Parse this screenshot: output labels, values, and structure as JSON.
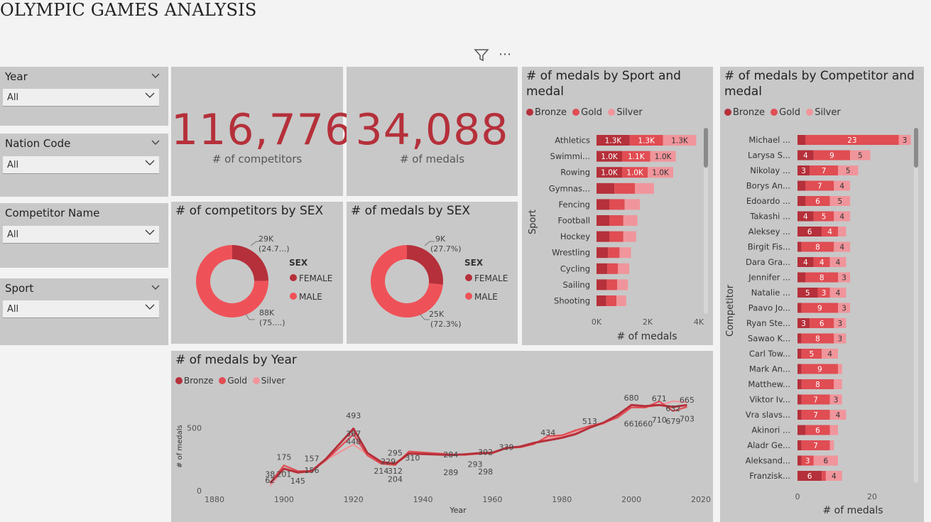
{
  "page_title": "OLYMPIC GAMES ANALYSIS",
  "colors": {
    "bronze": "#b5303a",
    "gold": "#e04d53",
    "silver": "#f0959b",
    "female": "#b5303a",
    "male": "#ee5258",
    "kpi": "#b5303a"
  },
  "toolbar": {
    "filter_icon": "filter-icon",
    "more_icon": "more-options-icon",
    "more_label": "⋯"
  },
  "slicers": [
    {
      "title": "Year",
      "value": "All"
    },
    {
      "title": "Nation Code",
      "value": "All"
    },
    {
      "title": "Competitor Name",
      "value": "All"
    },
    {
      "title": "Sport",
      "value": "All"
    }
  ],
  "kpis": {
    "competitors": {
      "value": "116,776",
      "label": "# of competitors"
    },
    "medals": {
      "value": "34,088",
      "label": "# of medals"
    }
  },
  "legend_medal": [
    "Bronze",
    "Gold",
    "Silver"
  ],
  "donut_competitors": {
    "title": "# of competitors by SEX",
    "legend_title": "SEX",
    "legend": [
      "FEMALE",
      "MALE"
    ],
    "female_label_1": "29K",
    "female_label_2": "(24.7...)",
    "male_label_1": "88K",
    "male_label_2": "(75....)"
  },
  "donut_medals": {
    "title": "# of medals by SEX",
    "legend_title": "SEX",
    "legend": [
      "FEMALE",
      "MALE"
    ],
    "female_label_1": "9K",
    "female_label_2": "(27.7%)",
    "male_label_1": "25K",
    "male_label_2": "(72.3%)"
  },
  "sport_chart": {
    "title": "# of medals by Sport and medal",
    "ylabel": "Sport",
    "xlabel": "# of medals",
    "ticks": [
      "0K",
      "2K",
      "4K"
    ]
  },
  "competitor_chart": {
    "title": "# of medals by Competitor and medal",
    "ylabel": "Competitor",
    "xlabel": "# of medals",
    "ticks": [
      "0",
      "20"
    ]
  },
  "year_chart": {
    "title": "# of medals by Year",
    "ylabel": "# of medals",
    "xlabel": "Year",
    "yticks": [
      "0",
      "500"
    ],
    "xticks": [
      "1880",
      "1900",
      "1920",
      "1940",
      "1960",
      "1980",
      "2000",
      "2020"
    ]
  },
  "chart_data": [
    {
      "type": "pie",
      "title": "# of competitors by SEX",
      "categories": [
        "FEMALE",
        "MALE"
      ],
      "values": [
        29000,
        88000
      ],
      "percent": [
        24.7,
        75.3
      ]
    },
    {
      "type": "pie",
      "title": "# of medals by SEX",
      "categories": [
        "FEMALE",
        "MALE"
      ],
      "values": [
        9000,
        25000
      ],
      "percent": [
        27.7,
        72.3
      ]
    },
    {
      "type": "bar",
      "title": "# of medals by Sport and medal",
      "orientation": "horizontal",
      "stacked": true,
      "categories": [
        "Athletics",
        "Swimmi...",
        "Rowing",
        "Gymnas...",
        "Fencing",
        "Football",
        "Hockey",
        "Wrestling",
        "Cycling",
        "Sailing",
        "Shooting"
      ],
      "series": [
        {
          "name": "Bronze",
          "values": [
            1300,
            1000,
            1000,
            700,
            500,
            500,
            500,
            450,
            420,
            400,
            380
          ],
          "labels": [
            "1.3K",
            "1.0K",
            "1.0K",
            "",
            "",
            "",
            "",
            "",
            "",
            "",
            ""
          ]
        },
        {
          "name": "Gold",
          "values": [
            1300,
            1100,
            1000,
            800,
            600,
            550,
            550,
            450,
            420,
            410,
            400
          ],
          "labels": [
            "1.3K",
            "1.1K",
            "1.0K",
            "",
            "",
            "",
            "",
            "",
            "",
            "",
            ""
          ]
        },
        {
          "name": "Silver",
          "values": [
            1300,
            1000,
            1000,
            750,
            600,
            550,
            500,
            450,
            440,
            420,
            380
          ],
          "labels": [
            "1.3K",
            "1.0K",
            "1.0K",
            "",
            "",
            "",
            "",
            "",
            "",
            "",
            ""
          ]
        }
      ],
      "xlim": [
        0,
        4000
      ],
      "xlabel": "# of medals",
      "ylabel": "Sport",
      "legend_position": "top-left"
    },
    {
      "type": "bar",
      "title": "# of medals by Competitor and medal",
      "orientation": "horizontal",
      "stacked": true,
      "categories": [
        "Michael ...",
        "Larysa S...",
        "Nikolay ...",
        "Borys An...",
        "Edoardo ...",
        "Takashi ...",
        "Aleksey ...",
        "Birgit Fis...",
        "Dara Gra...",
        "Jennifer ...",
        "Natalie ...",
        "Paavo Jo...",
        "Ryan Ste...",
        "Sawao K...",
        "Carl Tow...",
        "Mark An...",
        "Matthew...",
        "Viktor Iv...",
        "Vra slavs...",
        "Akinori ...",
        "Aladr Ge...",
        "Aleksand...",
        "Franzisk..."
      ],
      "series": [
        {
          "name": "Bronze",
          "values": [
            2,
            4,
            3,
            2,
            2,
            4,
            6,
            1,
            4,
            2,
            5,
            1,
            3,
            1,
            1,
            1,
            1,
            1,
            1,
            2,
            1,
            1,
            6
          ],
          "labels": [
            "",
            "4",
            "3",
            "",
            "",
            "4",
            "6",
            "",
            "4",
            "",
            "5",
            "",
            "3",
            "",
            "",
            "",
            "",
            "",
            "",
            "",
            "",
            "",
            "6"
          ]
        },
        {
          "name": "Gold",
          "values": [
            23,
            9,
            7,
            7,
            6,
            5,
            4,
            8,
            4,
            8,
            3,
            9,
            6,
            8,
            5,
            9,
            8,
            7,
            7,
            6,
            7,
            3,
            1
          ],
          "labels": [
            "23",
            "9",
            "7",
            "7",
            "6",
            "5",
            "4",
            "8",
            "4",
            "8",
            "3",
            "9",
            "6",
            "8",
            "5",
            "9",
            "8",
            "7",
            "7",
            "6",
            "7",
            "3",
            ""
          ]
        },
        {
          "name": "Silver",
          "values": [
            3,
            5,
            5,
            4,
            5,
            4,
            2,
            4,
            4,
            3,
            4,
            3,
            3,
            3,
            4,
            1,
            2,
            3,
            4,
            2,
            1,
            6,
            4
          ],
          "labels": [
            "3",
            "5",
            "5",
            "4",
            "5",
            "4",
            "",
            "4",
            "4",
            "3",
            "4",
            "3",
            "3",
            "3",
            "4",
            "",
            "",
            "3",
            "4",
            "",
            "",
            "6",
            "4"
          ]
        }
      ],
      "xlim": [
        0,
        30
      ],
      "xlabel": "# of medals",
      "ylabel": "Competitor",
      "legend_position": "top-left"
    },
    {
      "type": "line",
      "title": "# of medals by Year",
      "xlabel": "Year",
      "ylabel": "# of medals",
      "xlim": [
        1880,
        2020
      ],
      "ylim": [
        0,
        800
      ],
      "series": [
        {
          "name": "Bronze",
          "x": [
            1896,
            1900,
            1904,
            1908,
            1912,
            1920,
            1924,
            1928,
            1932,
            1936,
            1948,
            1952,
            1956,
            1960,
            1964,
            1968,
            1972,
            1976,
            1980,
            1984,
            1988,
            1992,
            1996,
            2000,
            2004,
            2008,
            2012,
            2016
          ],
          "y": [
            62,
            175,
            145,
            157,
            250,
            493,
            300,
            229,
            214,
            295,
            284,
            289,
            298,
            302,
            339,
            350,
            380,
            400,
            420,
            450,
            500,
            540,
            600,
            680,
            671,
            680,
            665,
            680
          ]
        },
        {
          "name": "Gold",
          "x": [
            1896,
            1900,
            1904,
            1908,
            1912,
            1920,
            1924,
            1928,
            1932,
            1936,
            1948,
            1952,
            1956,
            1960,
            1964,
            1968,
            1972,
            1976,
            1980,
            1984,
            1988,
            1992,
            1996,
            2000,
            2004,
            2008,
            2012,
            2016
          ],
          "y": [
            62,
            201,
            156,
            157,
            240,
            448,
            280,
            214,
            204,
            312,
            289,
            284,
            293,
            298,
            339,
            345,
            370,
            434,
            440,
            480,
            513,
            540,
            580,
            661,
            660,
            710,
            632,
            665
          ]
        },
        {
          "name": "Silver",
          "x": [
            1896,
            1900,
            1904,
            1908,
            1912,
            1920,
            1924,
            1928,
            1932,
            1936,
            1948,
            1952,
            1956,
            1960,
            1964,
            1968,
            1972,
            1976,
            1980,
            1984,
            1988,
            1992,
            1996,
            2000,
            2004,
            2008,
            2012,
            2016
          ],
          "y": [
            38,
            175,
            145,
            150,
            245,
            367,
            290,
            220,
            214,
            310,
            284,
            289,
            293,
            302,
            339,
            348,
            375,
            420,
            430,
            470,
            513,
            530,
            590,
            661,
            660,
            679,
            710,
            703
          ]
        }
      ],
      "data_labels": [
        {
          "x": 1896,
          "y": 62,
          "text": "62"
        },
        {
          "x": 1896,
          "y": 110,
          "text": "38"
        },
        {
          "x": 1900,
          "y": 110,
          "text": "201"
        },
        {
          "x": 1900,
          "y": 245,
          "text": "175"
        },
        {
          "x": 1904,
          "y": 55,
          "text": "145"
        },
        {
          "x": 1908,
          "y": 235,
          "text": "157"
        },
        {
          "x": 1908,
          "y": 140,
          "text": "156"
        },
        {
          "x": 1920,
          "y": 575,
          "text": "493"
        },
        {
          "x": 1920,
          "y": 430,
          "text": "367"
        },
        {
          "x": 1920,
          "y": 370,
          "text": "448"
        },
        {
          "x": 1930,
          "y": 210,
          "text": "229"
        },
        {
          "x": 1928,
          "y": 135,
          "text": "214"
        },
        {
          "x": 1932,
          "y": 70,
          "text": "204"
        },
        {
          "x": 1932,
          "y": 280,
          "text": "295"
        },
        {
          "x": 1932,
          "y": 135,
          "text": "312"
        },
        {
          "x": 1937,
          "y": 240,
          "text": "310"
        },
        {
          "x": 1948,
          "y": 265,
          "text": "284"
        },
        {
          "x": 1948,
          "y": 125,
          "text": "289"
        },
        {
          "x": 1958,
          "y": 285,
          "text": "302"
        },
        {
          "x": 1958,
          "y": 130,
          "text": "298"
        },
        {
          "x": 1955,
          "y": 190,
          "text": "293"
        },
        {
          "x": 1964,
          "y": 325,
          "text": "339"
        },
        {
          "x": 1976,
          "y": 440,
          "text": "434"
        },
        {
          "x": 1988,
          "y": 530,
          "text": "513"
        },
        {
          "x": 2000,
          "y": 715,
          "text": "680"
        },
        {
          "x": 2000,
          "y": 510,
          "text": "661"
        },
        {
          "x": 2004,
          "y": 510,
          "text": "660"
        },
        {
          "x": 2008,
          "y": 710,
          "text": "671"
        },
        {
          "x": 2008,
          "y": 540,
          "text": "710"
        },
        {
          "x": 2012,
          "y": 630,
          "text": "632"
        },
        {
          "x": 2012,
          "y": 530,
          "text": "679"
        },
        {
          "x": 2016,
          "y": 700,
          "text": "665"
        },
        {
          "x": 2016,
          "y": 550,
          "text": "703"
        }
      ],
      "legend_position": "top-left"
    }
  ]
}
